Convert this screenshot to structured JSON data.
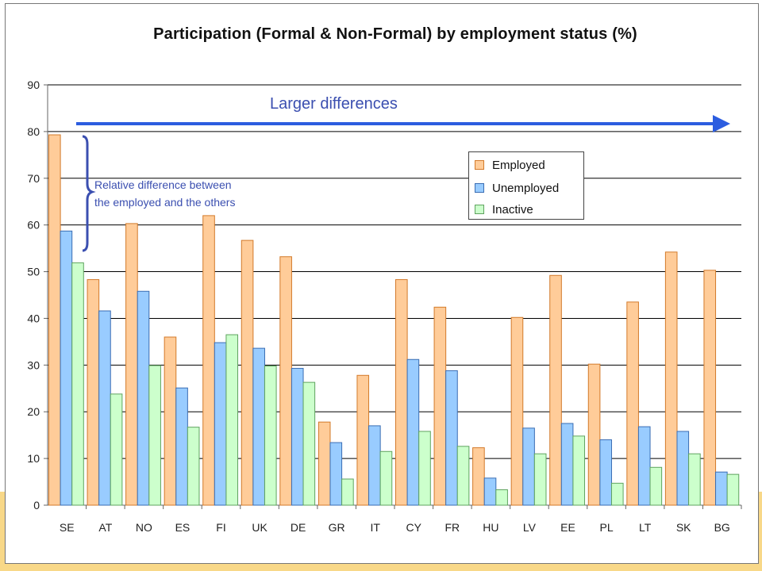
{
  "chart_data": {
    "type": "bar",
    "title": "Participation (Formal & Non-Formal) by employment status (%)",
    "categories": [
      "SE",
      "AT",
      "NO",
      "ES",
      "FI",
      "UK",
      "DE",
      "GR",
      "IT",
      "CY",
      "FR",
      "HU",
      "LV",
      "EE",
      "PL",
      "LT",
      "SK",
      "BG"
    ],
    "series": [
      {
        "name": "Employed",
        "color": "#ffcc99",
        "stroke": "#d37a2a",
        "values": [
          79.3,
          48.3,
          60.3,
          36.0,
          62.0,
          56.7,
          53.2,
          17.8,
          27.8,
          48.3,
          42.4,
          12.3,
          40.2,
          49.2,
          30.2,
          43.5,
          54.2,
          50.3
        ]
      },
      {
        "name": "Unemployed",
        "color": "#99ccff",
        "stroke": "#3a6db3",
        "values": [
          58.7,
          41.6,
          45.8,
          25.1,
          34.8,
          33.6,
          29.3,
          13.4,
          17.0,
          31.2,
          28.8,
          5.8,
          16.5,
          17.5,
          14.0,
          16.8,
          15.8,
          7.1
        ]
      },
      {
        "name": "Inactive",
        "color": "#ccffcc",
        "stroke": "#5fa35f",
        "values": [
          51.9,
          23.8,
          29.9,
          16.7,
          36.5,
          29.8,
          26.3,
          5.6,
          11.5,
          15.8,
          12.6,
          3.3,
          11.0,
          14.8,
          4.7,
          8.1,
          11.0,
          6.6
        ]
      }
    ],
    "ylim": [
      0,
      90
    ],
    "yticks": [
      0,
      10,
      20,
      30,
      40,
      50,
      60,
      70,
      80,
      90
    ],
    "xlabel": "",
    "ylabel": "",
    "grid": true,
    "legend_position": "top-right inside plot",
    "annotations": {
      "arrow_label": "Larger differences",
      "bracket_label_line1": "Relative difference between",
      "bracket_label_line2": "the employed and the others",
      "annotation_color": "#3b4fb0",
      "arrow_color": "#2c5de0"
    }
  }
}
